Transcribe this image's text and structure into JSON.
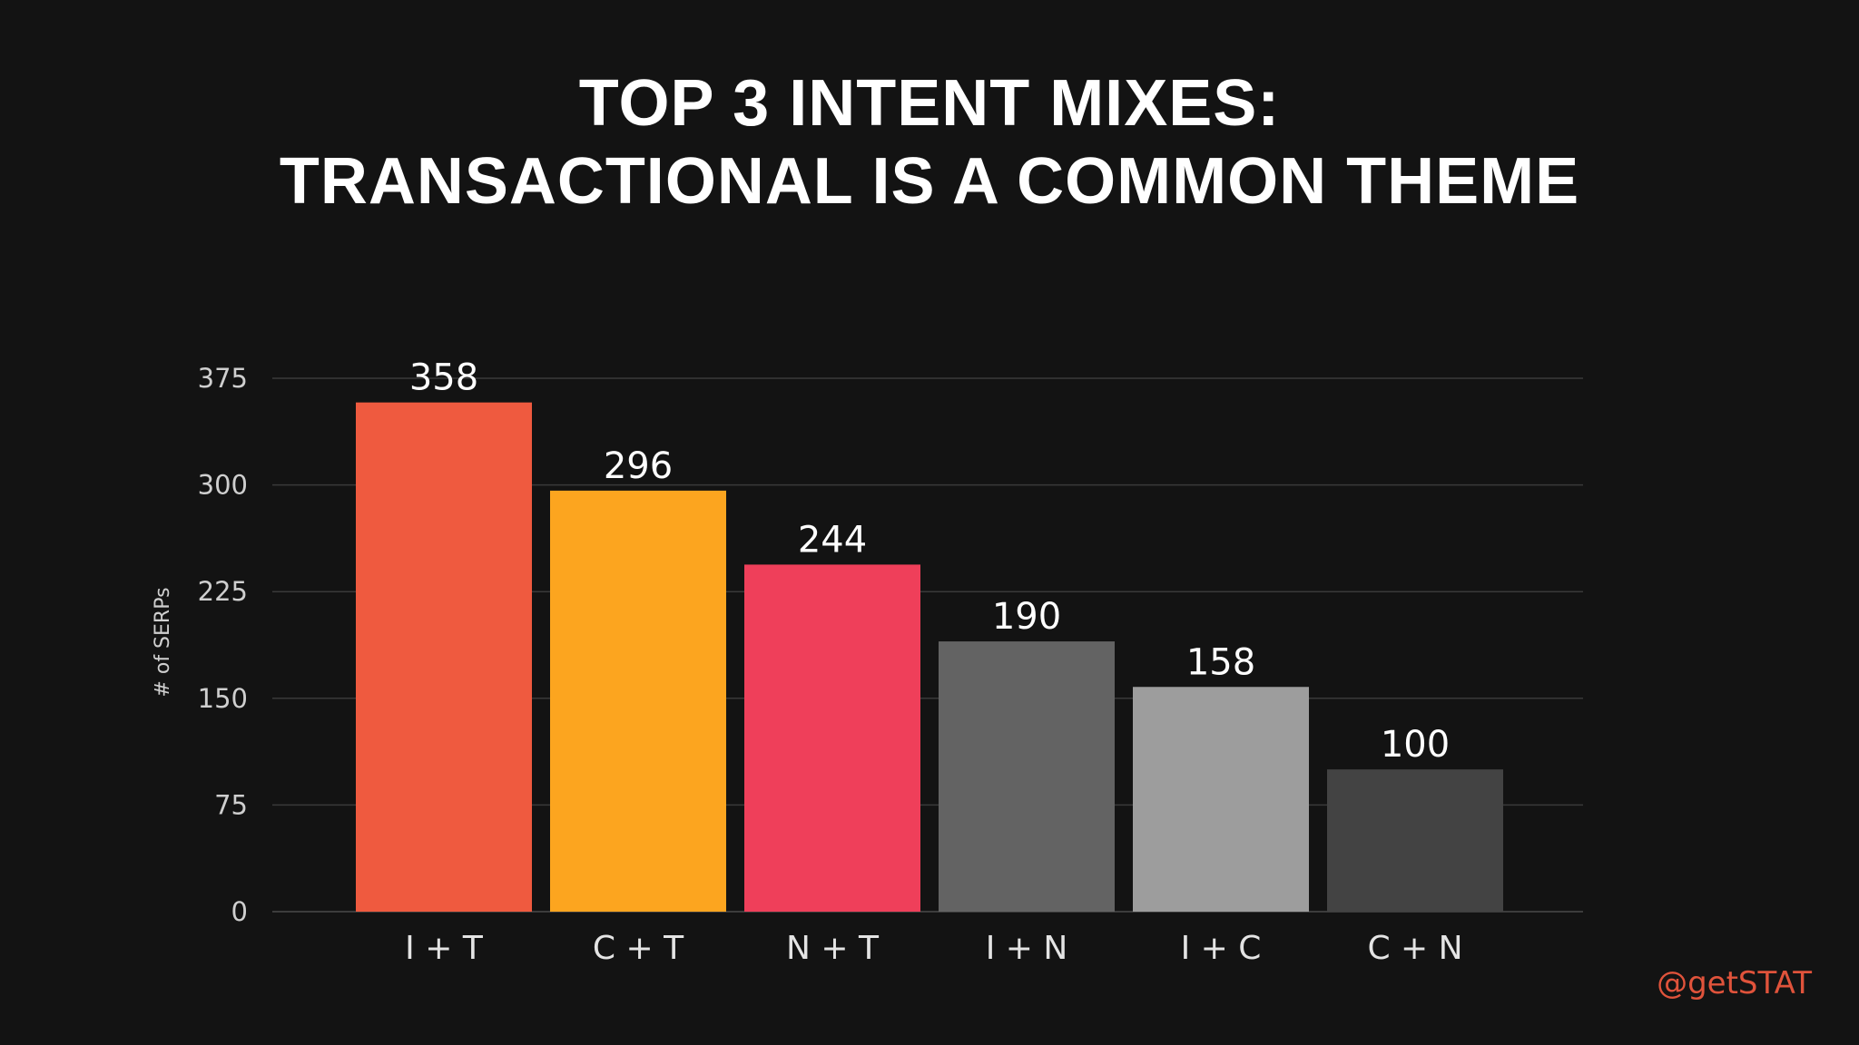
{
  "title_line1": "TOP 3 INTENT MIXES:",
  "title_line2": "TRANSACTIONAL IS A COMMON THEME",
  "handle": "@getSTAT",
  "handle_color": "#e0533b",
  "chart_data": {
    "type": "bar",
    "categories": [
      "I + T",
      "C + T",
      "N + T",
      "I + N",
      "I + C",
      "C + N"
    ],
    "values": [
      358,
      296,
      244,
      190,
      158,
      100
    ],
    "colors": [
      "#ef5a3f",
      "#fca51f",
      "#ef3f5a",
      "#636363",
      "#9d9d9d",
      "#434343"
    ],
    "ylabel": "# of SERPs",
    "xlabel": "",
    "ylim": [
      0,
      375
    ],
    "yticks": [
      0,
      75,
      150,
      225,
      300,
      375
    ],
    "grid": true
  }
}
